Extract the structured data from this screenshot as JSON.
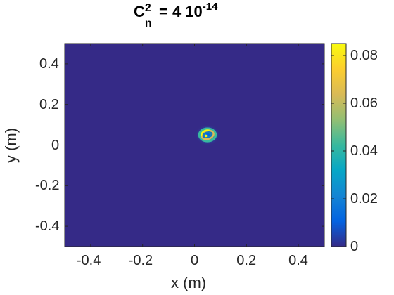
{
  "title": {
    "base": "C",
    "superscript": "2",
    "subscript": "n",
    "equals": " = 4 10",
    "exponent": "-14"
  },
  "chart_data": {
    "type": "heatmap",
    "title": "C_n^2 = 4 10^-14",
    "xlabel": "x (m)",
    "ylabel": "y (m)",
    "xlim": [
      -0.5,
      0.5
    ],
    "ylim": [
      -0.5,
      0.5
    ],
    "x_ticks": [
      "-0.4",
      "-0.2",
      "0",
      "0.2",
      "0.4"
    ],
    "x_tick_values": [
      -0.4,
      -0.2,
      0,
      0.2,
      0.4
    ],
    "y_ticks": [
      "0.4",
      "0.2",
      "0",
      "-0.2",
      "-0.4"
    ],
    "y_tick_values": [
      0.4,
      0.2,
      0,
      -0.2,
      -0.4
    ],
    "colorbar": {
      "range": [
        0,
        0.085
      ],
      "ticks": [
        "0.08",
        "0.06",
        "0.04",
        "0.02",
        "0"
      ],
      "tick_values": [
        0.08,
        0.06,
        0.04,
        0.02,
        0
      ],
      "colormap": "parula"
    },
    "background_value": 0,
    "feature": {
      "description": "small bright ring/spot",
      "center_x": 0.05,
      "center_y": 0.05,
      "ring_radius_m": 0.025,
      "peak_value": 0.085
    },
    "grid": false
  },
  "colors": {
    "parula_stops": [
      "#352a87",
      "#0363e1",
      "#1485d4",
      "#06a7c6",
      "#38b99e",
      "#92bf73",
      "#d9ba56",
      "#fcce2e",
      "#f9fb0e"
    ],
    "axis": "#262626",
    "background": "#ffffff"
  }
}
